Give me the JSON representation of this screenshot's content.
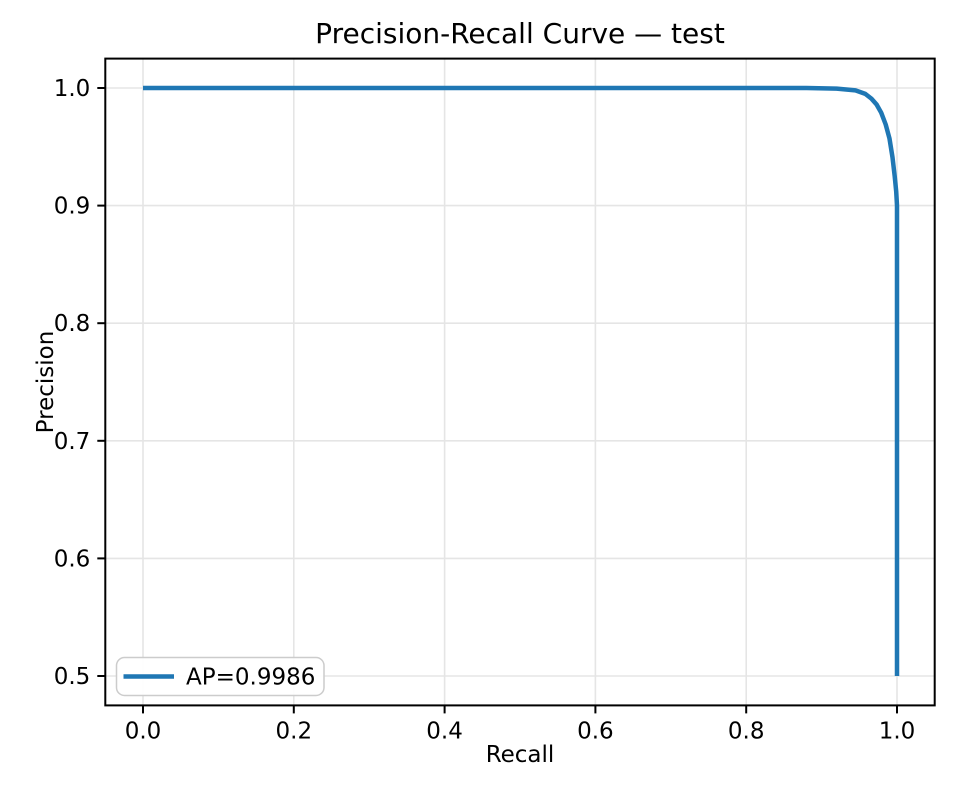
{
  "figure": {
    "background": "#ffffff"
  },
  "colors": {
    "line": "#1f77b4",
    "grid": "#e5e5e5",
    "spine": "#000000",
    "text": "#000000",
    "legend_border": "#cccccc",
    "legend_background": "#ffffff"
  },
  "chart_data": {
    "type": "line",
    "title": "Precision-Recall Curve — test",
    "xlabel": "Recall",
    "ylabel": "Precision",
    "xlim": [
      -0.05,
      1.05
    ],
    "ylim": [
      0.475,
      1.025
    ],
    "grid": true,
    "x_ticks": [
      {
        "value": 0.0,
        "label": "0.0"
      },
      {
        "value": 0.2,
        "label": "0.2"
      },
      {
        "value": 0.4,
        "label": "0.4"
      },
      {
        "value": 0.6,
        "label": "0.6"
      },
      {
        "value": 0.8,
        "label": "0.8"
      },
      {
        "value": 1.0,
        "label": "1.0"
      }
    ],
    "y_ticks": [
      {
        "value": 0.5,
        "label": "0.5"
      },
      {
        "value": 0.6,
        "label": "0.6"
      },
      {
        "value": 0.7,
        "label": "0.7"
      },
      {
        "value": 0.8,
        "label": "0.8"
      },
      {
        "value": 0.9,
        "label": "0.9"
      },
      {
        "value": 1.0,
        "label": "1.0"
      }
    ],
    "legend": {
      "position": "lower left",
      "entries": [
        {
          "label": "AP=0.9986",
          "color": "#1f77b4"
        }
      ]
    },
    "series": [
      {
        "name": "AP=0.9986",
        "average_precision": 0.9986,
        "color": "#1f77b4",
        "points": [
          [
            0.0,
            1.0
          ],
          [
            0.1,
            1.0
          ],
          [
            0.2,
            1.0
          ],
          [
            0.3,
            1.0
          ],
          [
            0.4,
            1.0
          ],
          [
            0.5,
            1.0
          ],
          [
            0.6,
            1.0
          ],
          [
            0.7,
            1.0
          ],
          [
            0.8,
            1.0
          ],
          [
            0.88,
            1.0
          ],
          [
            0.92,
            0.9995
          ],
          [
            0.945,
            0.998
          ],
          [
            0.958,
            0.995
          ],
          [
            0.966,
            0.991
          ],
          [
            0.973,
            0.986
          ],
          [
            0.979,
            0.979
          ],
          [
            0.985,
            0.969
          ],
          [
            0.99,
            0.957
          ],
          [
            0.994,
            0.941
          ],
          [
            0.997,
            0.925
          ],
          [
            0.999,
            0.912
          ],
          [
            1.0,
            0.9
          ],
          [
            1.0,
            0.5
          ]
        ]
      }
    ]
  }
}
